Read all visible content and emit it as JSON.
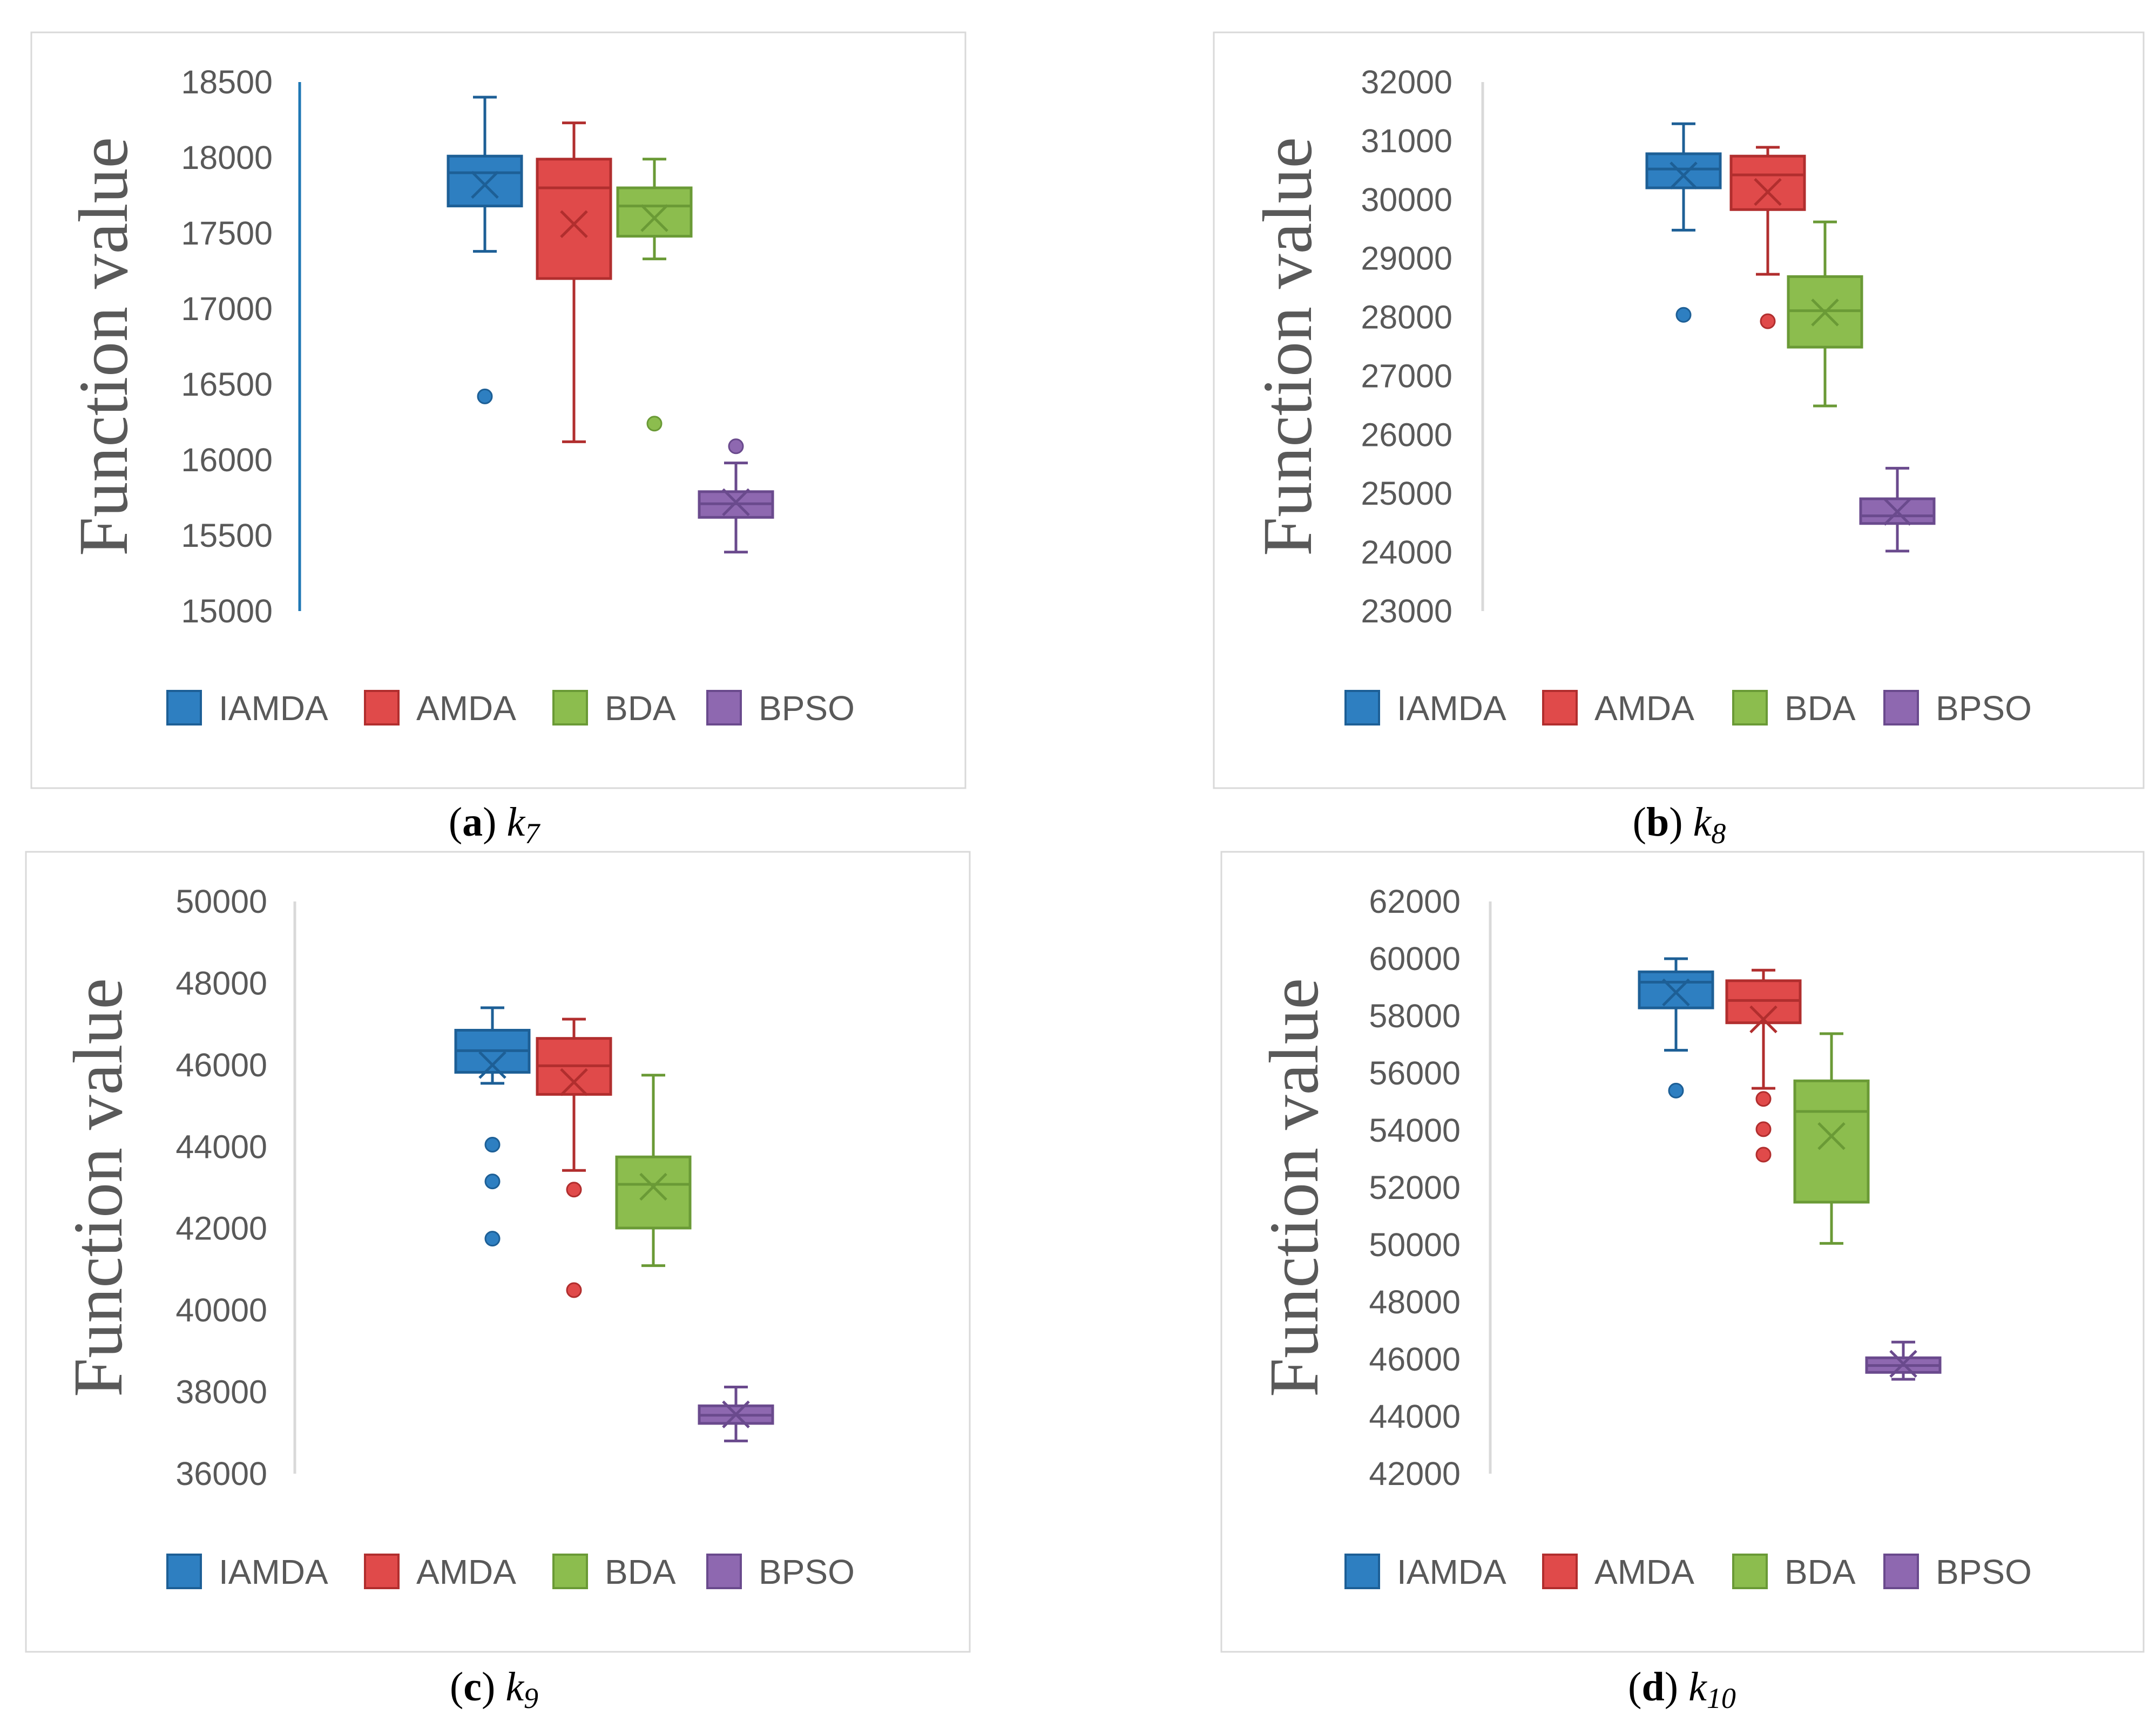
{
  "series_colors": {
    "IAMDA": {
      "fill": "#2e7fc1",
      "stroke": "#1d5f96"
    },
    "AMDA": {
      "fill": "#e04a4a",
      "stroke": "#b12e2e"
    },
    "BDA": {
      "fill": "#8cbd4e",
      "stroke": "#6a9a36"
    },
    "BPSO": {
      "fill": "#8e68b0",
      "stroke": "#6a4a8d"
    }
  },
  "chart_data": [
    {
      "type": "box",
      "panel": "a",
      "caption_letter": "a",
      "caption_var": "k",
      "caption_sub": "7",
      "ylabel": "Function value",
      "ylim": [
        15000,
        18500
      ],
      "yticks": [
        15000,
        15500,
        16000,
        16500,
        17000,
        17500,
        18000,
        18500
      ],
      "legend": [
        "IAMDA",
        "AMDA",
        "BDA",
        "BPSO"
      ],
      "series": [
        {
          "name": "IAMDA",
          "min": 17380,
          "q1": 17680,
          "median": 17900,
          "q3": 18010,
          "max": 18400,
          "mean": 17820,
          "outliers": [
            16420
          ]
        },
        {
          "name": "AMDA",
          "min": 16120,
          "q1": 17200,
          "median": 17800,
          "q3": 17990,
          "max": 18230,
          "mean": 17560,
          "outliers": []
        },
        {
          "name": "BDA",
          "min": 17330,
          "q1": 17480,
          "median": 17680,
          "q3": 17800,
          "max": 17990,
          "mean": 17600,
          "outliers": [
            16240
          ]
        },
        {
          "name": "BPSO",
          "min": 15390,
          "q1": 15620,
          "median": 15710,
          "q3": 15790,
          "max": 15980,
          "mean": 15720,
          "outliers": [
            16090
          ]
        }
      ]
    },
    {
      "type": "box",
      "panel": "b",
      "caption_letter": "b",
      "caption_var": "k",
      "caption_sub": "8",
      "ylabel": "Function value",
      "ylim": [
        23000,
        32000
      ],
      "yticks": [
        23000,
        24000,
        25000,
        26000,
        27000,
        28000,
        29000,
        30000,
        31000,
        32000
      ],
      "legend": [
        "IAMDA",
        "AMDA",
        "BDA",
        "BPSO"
      ],
      "series": [
        {
          "name": "IAMDA",
          "min": 29480,
          "q1": 30200,
          "median": 30520,
          "q3": 30780,
          "max": 31290,
          "mean": 30410,
          "outliers": [
            28040
          ]
        },
        {
          "name": "AMDA",
          "min": 28730,
          "q1": 29830,
          "median": 30420,
          "q3": 30740,
          "max": 30890,
          "mean": 30130,
          "outliers": [
            27930
          ]
        },
        {
          "name": "BDA",
          "min": 26490,
          "q1": 27490,
          "median": 28110,
          "q3": 28690,
          "max": 29620,
          "mean": 28080,
          "outliers": []
        },
        {
          "name": "BPSO",
          "min": 24020,
          "q1": 24490,
          "median": 24620,
          "q3": 24910,
          "max": 25430,
          "mean": 24690,
          "outliers": []
        }
      ]
    },
    {
      "type": "box",
      "panel": "c",
      "caption_letter": "c",
      "caption_var": "k",
      "caption_sub": "9",
      "ylabel": "Function value",
      "ylim": [
        36000,
        50000
      ],
      "yticks": [
        36000,
        38000,
        40000,
        42000,
        44000,
        46000,
        48000,
        50000
      ],
      "legend": [
        "IAMDA",
        "AMDA",
        "BDA",
        "BPSO"
      ],
      "series": [
        {
          "name": "IAMDA",
          "min": 45550,
          "q1": 45820,
          "median": 46350,
          "q3": 46850,
          "max": 47400,
          "mean": 46000,
          "outliers": [
            44050,
            43150,
            41750
          ]
        },
        {
          "name": "AMDA",
          "min": 43420,
          "q1": 45280,
          "median": 45980,
          "q3": 46650,
          "max": 47120,
          "mean": 45580,
          "outliers": [
            42950,
            40490
          ]
        },
        {
          "name": "BDA",
          "min": 41090,
          "q1": 42010,
          "median": 43080,
          "q3": 43750,
          "max": 45750,
          "mean": 43020,
          "outliers": []
        },
        {
          "name": "BPSO",
          "min": 36800,
          "q1": 37230,
          "median": 37430,
          "q3": 37660,
          "max": 38120,
          "mean": 37450,
          "outliers": []
        }
      ]
    },
    {
      "type": "box",
      "panel": "d",
      "caption_letter": "d",
      "caption_var": "k",
      "caption_sub": "10",
      "ylabel": "Function value",
      "ylim": [
        42000,
        62000
      ],
      "yticks": [
        42000,
        44000,
        46000,
        48000,
        50000,
        52000,
        54000,
        56000,
        58000,
        60000,
        62000
      ],
      "legend": [
        "IAMDA",
        "AMDA",
        "BDA",
        "BPSO"
      ],
      "series": [
        {
          "name": "IAMDA",
          "min": 56800,
          "q1": 58280,
          "median": 59180,
          "q3": 59540,
          "max": 60000,
          "mean": 58820,
          "outliers": [
            55390
          ]
        },
        {
          "name": "AMDA",
          "min": 55470,
          "q1": 57760,
          "median": 58540,
          "q3": 59230,
          "max": 59600,
          "mean": 57880,
          "outliers": [
            55100,
            54040,
            53150
          ]
        },
        {
          "name": "BDA",
          "min": 50050,
          "q1": 51490,
          "median": 54660,
          "q3": 55730,
          "max": 57380,
          "mean": 53800,
          "outliers": []
        },
        {
          "name": "BPSO",
          "min": 45300,
          "q1": 45540,
          "median": 45780,
          "q3": 46050,
          "max": 46600,
          "mean": 45840,
          "outliers": []
        }
      ]
    }
  ]
}
